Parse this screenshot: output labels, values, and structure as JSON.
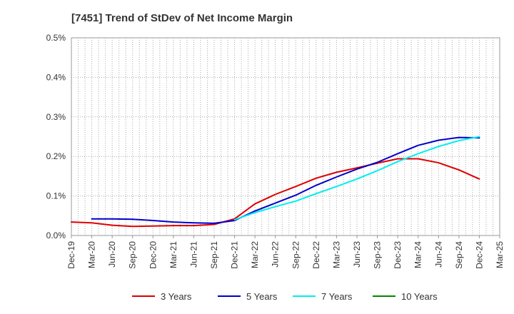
{
  "chart_data": {
    "type": "line",
    "title": "[7451]  Trend of StDev of Net Income Margin",
    "xlabel": "",
    "ylabel": "",
    "x": [
      "Dec-19",
      "Mar-20",
      "Jun-20",
      "Sep-20",
      "Dec-20",
      "Mar-21",
      "Jun-21",
      "Sep-21",
      "Dec-21",
      "Mar-22",
      "Jun-22",
      "Sep-22",
      "Dec-22",
      "Mar-23",
      "Jun-23",
      "Sep-23",
      "Dec-23",
      "Mar-24",
      "Jun-24",
      "Sep-24",
      "Dec-24",
      "Mar-25"
    ],
    "y_ticks": [
      "0.0%",
      "0.1%",
      "0.2%",
      "0.3%",
      "0.4%",
      "0.5%"
    ],
    "ylim": [
      0,
      0.5
    ],
    "grid": true,
    "legend_position": "bottom",
    "colors": {
      "3y": "#dd0000",
      "5y": "#0000cc",
      "7y": "#00eeee",
      "10y": "#008800"
    },
    "series": [
      {
        "name": "3 Years",
        "color": "#dd0000",
        "values": [
          0.034,
          0.032,
          0.026,
          0.023,
          0.024,
          0.025,
          0.025,
          0.028,
          0.042,
          0.08,
          0.104,
          0.124,
          0.145,
          0.16,
          0.171,
          0.183,
          0.194,
          0.194,
          0.184,
          0.166,
          0.143,
          null
        ]
      },
      {
        "name": "5 Years",
        "color": "#0000cc",
        "values": [
          null,
          0.042,
          0.042,
          0.041,
          0.038,
          0.034,
          0.032,
          0.031,
          0.038,
          0.062,
          0.082,
          0.102,
          0.127,
          0.148,
          0.168,
          0.185,
          0.207,
          0.228,
          0.241,
          0.248,
          0.247,
          null
        ]
      },
      {
        "name": "7 Years",
        "color": "#00eeee",
        "values": [
          null,
          null,
          null,
          null,
          null,
          null,
          null,
          null,
          0.04,
          0.058,
          0.073,
          0.087,
          0.106,
          0.124,
          0.143,
          0.164,
          0.187,
          0.207,
          0.225,
          0.24,
          0.25,
          null
        ]
      },
      {
        "name": "10 Years",
        "color": "#008800",
        "values": [
          null,
          null,
          null,
          null,
          null,
          null,
          null,
          null,
          null,
          null,
          null,
          null,
          null,
          null,
          null,
          null,
          null,
          null,
          null,
          null,
          null,
          null
        ]
      }
    ]
  }
}
